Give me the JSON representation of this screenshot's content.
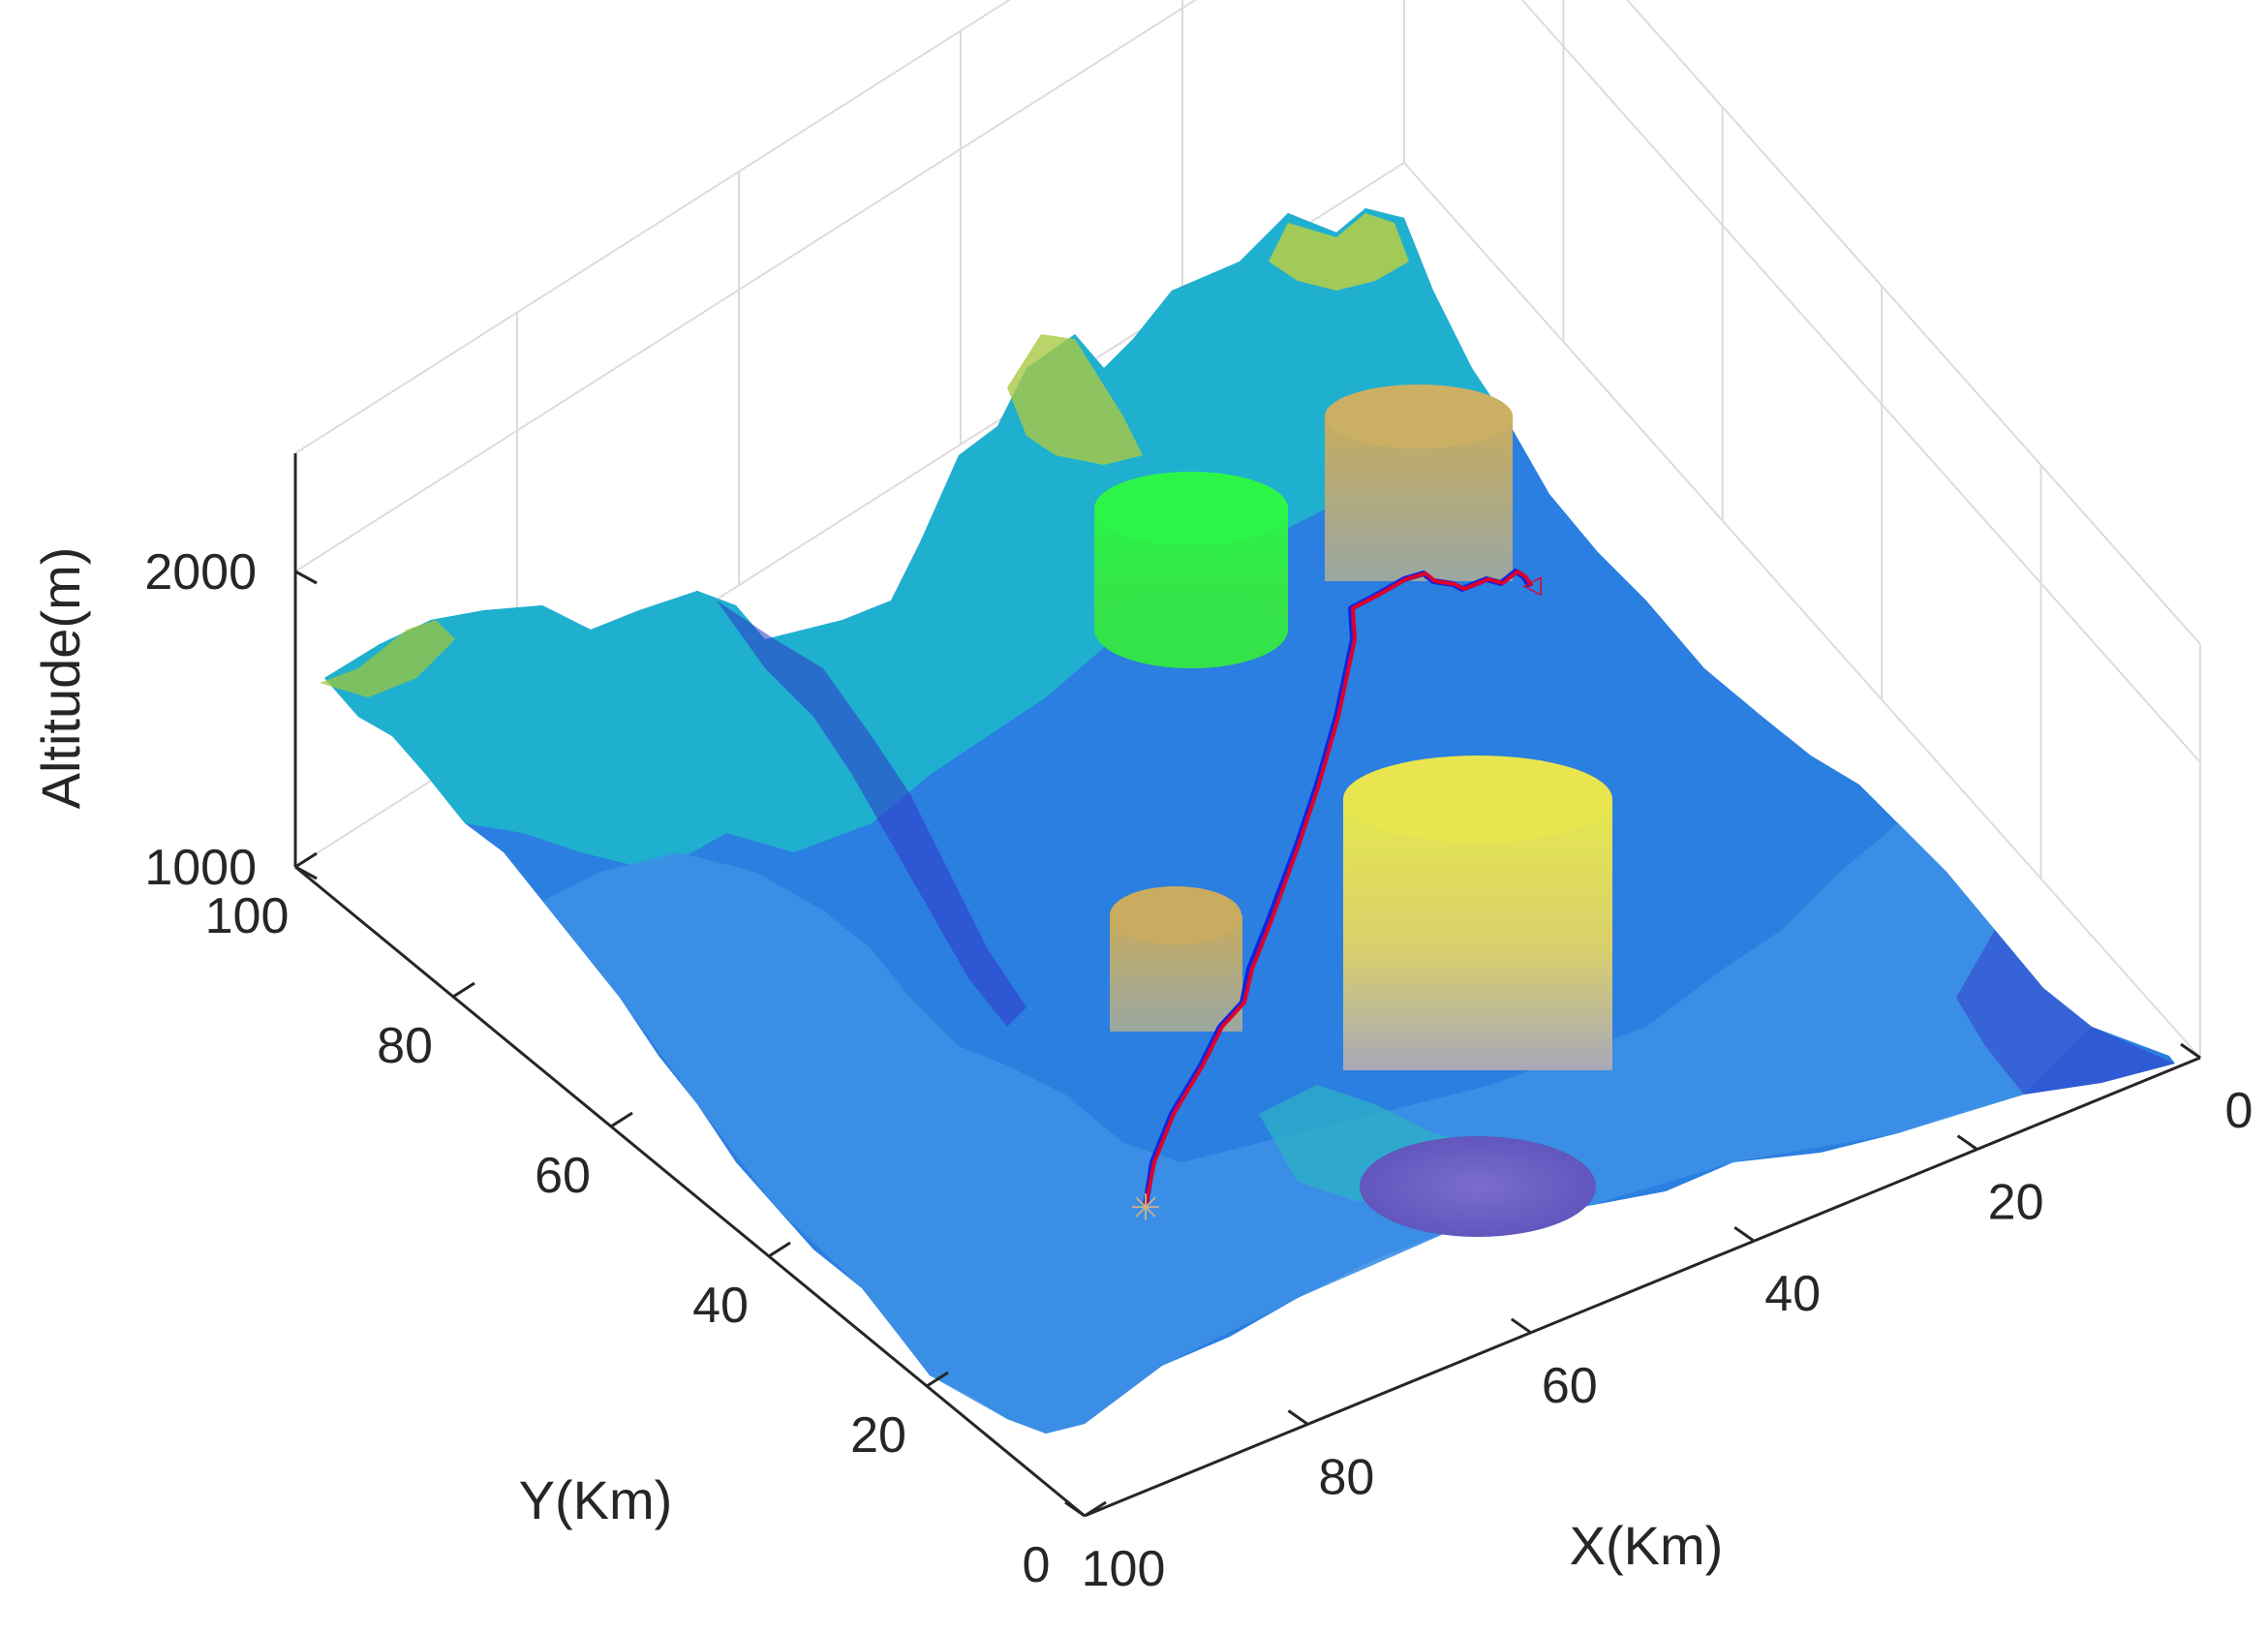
{
  "chart_data": {
    "type": "surface",
    "title": "",
    "xlabel": "X(Km)",
    "ylabel": "Y(Km)",
    "zlabel": "Altitude(m)",
    "xlim": [
      0,
      100
    ],
    "ylim": [
      0,
      100
    ],
    "zlim": [
      1000,
      2400
    ],
    "xticks": [
      0,
      20,
      40,
      60,
      80,
      100
    ],
    "yticks": [
      0,
      20,
      40,
      60,
      80,
      100
    ],
    "zticks": [
      1000,
      2000
    ],
    "grid": true,
    "colormap": "parula",
    "colors": {
      "terrain_low": "#3b3fe0",
      "terrain_mid": "#1fa8d8",
      "terrain_high": "#c8cf3c",
      "threat_bright": "#17f22a",
      "threat_tan": "#b9a46b",
      "threat_yellow": "#e3e85a",
      "path_primary": "#e0002a",
      "path_secondary": "#1025e0"
    },
    "obstacles": [
      {
        "shape": "cylinder",
        "center": [
          40,
          78
        ],
        "radius": 9,
        "color": "green"
      },
      {
        "shape": "cylinder",
        "center": [
          22,
          55
        ],
        "radius": 9,
        "color": "tan"
      },
      {
        "shape": "cylinder",
        "center": [
          65,
          45
        ],
        "radius": 7,
        "color": "tan"
      },
      {
        "shape": "cylinder",
        "center": [
          47,
          25
        ],
        "radius": 14,
        "color": "yellow"
      }
    ],
    "path": {
      "start": [
        72,
        28
      ],
      "end": [
        12,
        70
      ],
      "points": [
        [
          72,
          28
        ],
        [
          62,
          38
        ],
        [
          54,
          46
        ],
        [
          45,
          55
        ],
        [
          35,
          62
        ],
        [
          26,
          68
        ],
        [
          18,
          70
        ],
        [
          12,
          70
        ]
      ]
    }
  }
}
